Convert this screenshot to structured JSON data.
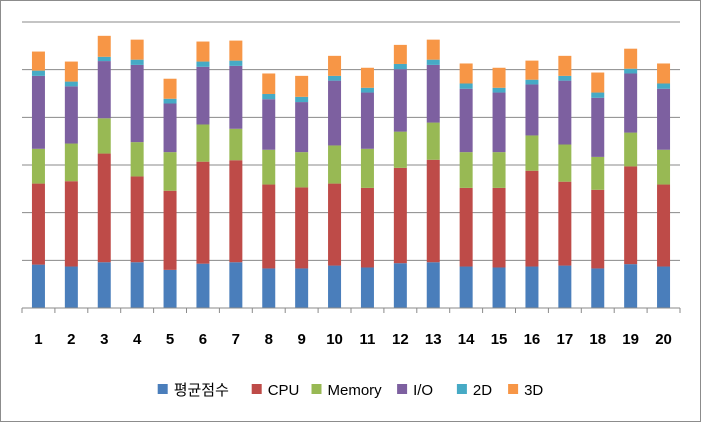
{
  "chart_data": {
    "type": "bar",
    "stacked": true,
    "title": "",
    "xlabel": "",
    "ylabel": "",
    "ylim": [
      0,
      6
    ],
    "grid": true,
    "legend_position": "bottom",
    "categories": [
      "1",
      "2",
      "3",
      "4",
      "5",
      "6",
      "7",
      "8",
      "9",
      "10",
      "11",
      "12",
      "13",
      "14",
      "15",
      "16",
      "17",
      "18",
      "19",
      "20"
    ],
    "series": [
      {
        "name": "평균점수",
        "color": "#4a7ebb",
        "values": [
          0.91,
          0.87,
          0.96,
          0.96,
          0.8,
          0.93,
          0.96,
          0.83,
          0.83,
          0.89,
          0.85,
          0.94,
          0.96,
          0.87,
          0.85,
          0.87,
          0.89,
          0.83,
          0.92,
          0.87
        ]
      },
      {
        "name": "CPU",
        "color": "#be4b48",
        "values": [
          1.7,
          1.79,
          2.28,
          1.8,
          1.66,
          2.14,
          2.14,
          1.76,
          1.7,
          1.72,
          1.67,
          2.0,
          2.15,
          1.65,
          1.67,
          2.01,
          1.76,
          1.65,
          2.05,
          1.72
        ]
      },
      {
        "name": "Memory",
        "color": "#98b954",
        "values": [
          0.73,
          0.79,
          0.74,
          0.72,
          0.81,
          0.78,
          0.66,
          0.73,
          0.74,
          0.8,
          0.82,
          0.76,
          0.78,
          0.75,
          0.75,
          0.74,
          0.78,
          0.69,
          0.71,
          0.73
        ]
      },
      {
        "name": "I/O",
        "color": "#7d60a0",
        "values": [
          1.53,
          1.2,
          1.2,
          1.62,
          1.02,
          1.21,
          1.32,
          1.06,
          1.05,
          1.36,
          1.18,
          1.31,
          1.21,
          1.33,
          1.25,
          1.07,
          1.34,
          1.24,
          1.24,
          1.28
        ]
      },
      {
        "name": "2D",
        "color": "#46aac5",
        "values": [
          0.11,
          0.1,
          0.09,
          0.11,
          0.1,
          0.11,
          0.11,
          0.11,
          0.11,
          0.1,
          0.1,
          0.11,
          0.11,
          0.11,
          0.1,
          0.1,
          0.1,
          0.11,
          0.1,
          0.11
        ]
      },
      {
        "name": "3D",
        "color": "#f79646",
        "values": [
          0.4,
          0.42,
          0.44,
          0.42,
          0.42,
          0.42,
          0.42,
          0.43,
          0.44,
          0.42,
          0.42,
          0.4,
          0.42,
          0.42,
          0.42,
          0.4,
          0.42,
          0.42,
          0.42,
          0.42
        ]
      }
    ]
  }
}
